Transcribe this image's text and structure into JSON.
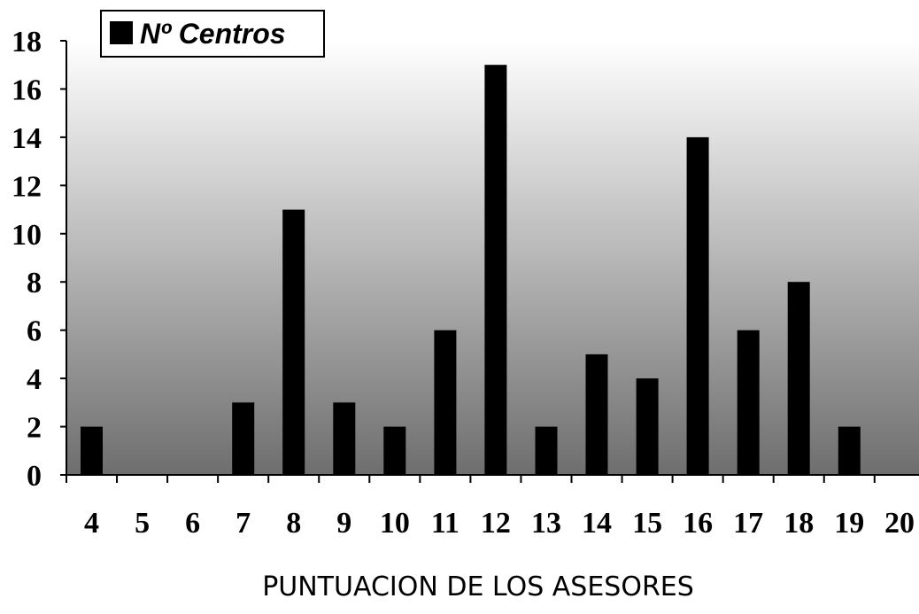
{
  "chart_data": {
    "type": "bar",
    "title": "",
    "xlabel": "PUNTUACION DE LOS ASESORES",
    "ylabel": "",
    "ylim": [
      0,
      18
    ],
    "yticks": [
      0,
      2,
      4,
      6,
      8,
      10,
      12,
      14,
      16,
      18
    ],
    "categories": [
      "4",
      "5",
      "6",
      "7",
      "8",
      "9",
      "10",
      "11",
      "12",
      "13",
      "14",
      "15",
      "16",
      "17",
      "18",
      "19",
      "20"
    ],
    "series": [
      {
        "name": "Nº Centros",
        "values": [
          2,
          0,
          0,
          3,
          11,
          3,
          2,
          6,
          17,
          2,
          5,
          4,
          14,
          6,
          8,
          2,
          0
        ]
      }
    ],
    "legend_position": "top-left",
    "grid": false,
    "colors": {
      "bar": "#000000",
      "background_top": "#ffffff",
      "background_bottom": "#6e6e6e"
    }
  }
}
